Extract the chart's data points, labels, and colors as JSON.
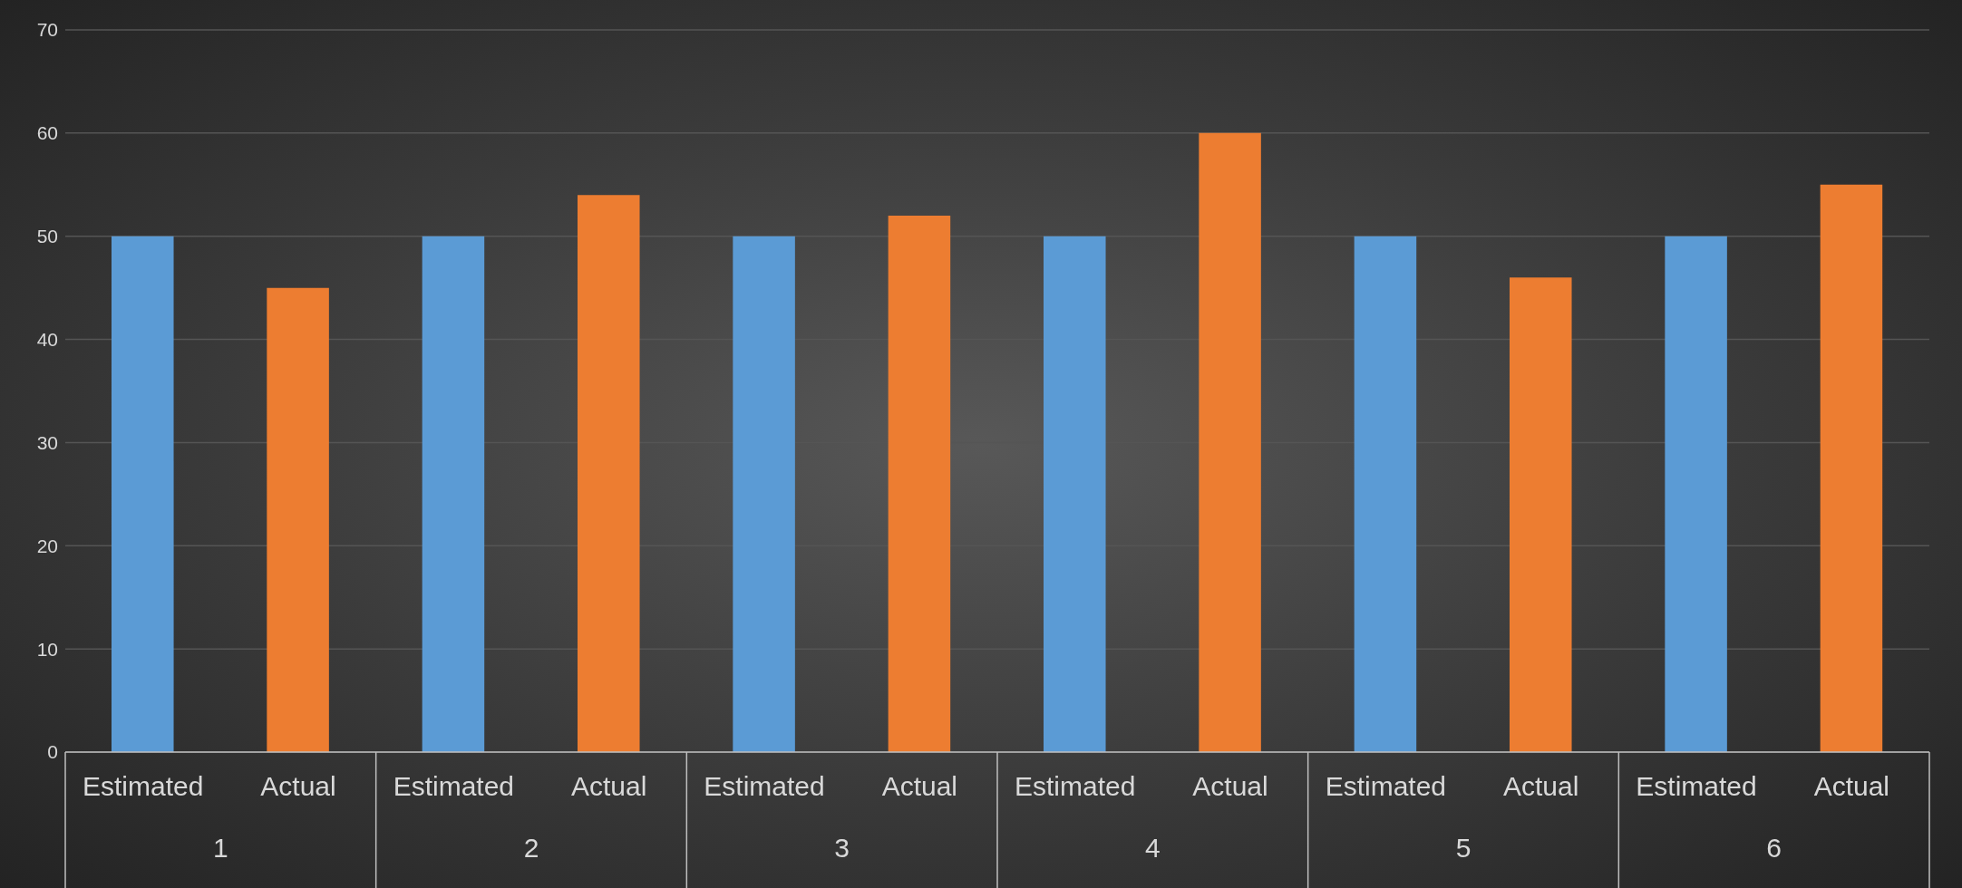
{
  "chart_data": {
    "type": "bar",
    "categories": [
      "1",
      "2",
      "3",
      "4",
      "5",
      "6"
    ],
    "series": [
      {
        "name": "Estimated",
        "color": "#5b9bd5",
        "values": [
          50,
          50,
          50,
          50,
          50,
          50
        ]
      },
      {
        "name": "Actual",
        "color": "#ed7d31",
        "values": [
          45,
          54,
          52,
          60,
          46,
          55
        ]
      }
    ],
    "ylim": [
      0,
      70
    ],
    "yticks": [
      0,
      10,
      20,
      30,
      40,
      50,
      60,
      70
    ],
    "grid": "y"
  }
}
